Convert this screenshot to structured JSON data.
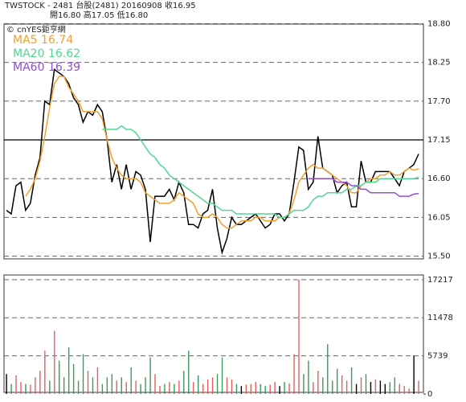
{
  "chart_data": [
    {
      "type": "line",
      "title": "TWSTOCK  -  2481  台股(2481) 20160908   收16.95",
      "subtitle": "開16.80     高17.05     低16.80",
      "source": "© cnYES鉅亨網",
      "ylim": [
        15.45,
        18.85
      ],
      "yticks": [
        {
          "value": 18.8,
          "label": "18.80"
        },
        18.25,
        {
          "value": 17.7,
          "label": "17.70"
        },
        17.15,
        {
          "value": 16.6,
          "label": "16.60"
        },
        16.05,
        {
          "value": 15.5,
          "label": "15.50"
        }
      ],
      "reference_line": 17.15,
      "grid": true,
      "series": [
        {
          "color": "#000000",
          "values": [
            16.15,
            16.1,
            16.5,
            16.55,
            16.15,
            16.25,
            16.65,
            16.9,
            17.7,
            17.65,
            18.15,
            18.1,
            18.05,
            17.95,
            17.75,
            17.65,
            17.4,
            17.55,
            17.5,
            17.65,
            17.55,
            17.15,
            16.55,
            16.8,
            16.45,
            16.8,
            16.45,
            16.7,
            16.65,
            16.45,
            15.7,
            16.35,
            16.35,
            16.35,
            16.45,
            16.3,
            16.55,
            16.4,
            15.95,
            15.95,
            15.9,
            16.1,
            16.15,
            16.45,
            15.9,
            15.55,
            15.75,
            16.05,
            15.95,
            15.95,
            16.0,
            16.05,
            16.1,
            16.0,
            15.9,
            15.95,
            16.1,
            16.1,
            16.0,
            16.1,
            16.55,
            17.05,
            17.0,
            16.45,
            16.55,
            17.2,
            16.75,
            16.7,
            16.65,
            16.4,
            16.5,
            16.55,
            16.2,
            16.2,
            16.85,
            16.55,
            16.55,
            16.7,
            16.7,
            16.7,
            16.7,
            16.6,
            16.5,
            16.7,
            16.75,
            16.8,
            16.95
          ]
        },
        {
          "name": "MA5",
          "color": "#f0a030",
          "values": [
            null,
            null,
            null,
            null,
            16.35,
            16.45,
            16.6,
            16.85,
            17.2,
            17.6,
            17.95,
            18.05,
            18.05,
            17.9,
            17.8,
            17.7,
            17.55,
            17.55,
            17.55,
            17.55,
            17.45,
            17.15,
            16.9,
            16.75,
            16.65,
            16.6,
            16.6,
            16.6,
            16.55,
            16.4,
            16.35,
            16.3,
            16.25,
            16.25,
            16.25,
            16.3,
            16.4,
            16.35,
            16.3,
            16.25,
            16.1,
            16.05,
            16.05,
            16.1,
            16.05,
            15.95,
            15.9,
            15.9,
            15.95,
            16.0,
            16.0,
            16.0,
            16.05,
            16.05,
            16.0,
            16.0,
            16.0,
            16.05,
            16.05,
            16.1,
            16.3,
            16.55,
            16.65,
            16.75,
            16.8,
            16.75,
            16.75,
            16.7,
            16.65,
            16.6,
            16.55,
            16.5,
            16.4,
            16.4,
            16.5,
            16.55,
            16.6,
            16.6,
            16.65,
            16.65,
            16.7,
            16.65,
            16.65,
            16.7,
            16.75,
            16.72,
            16.74
          ]
        },
        {
          "name": "MA20",
          "color": "#50d890",
          "values": [
            null,
            null,
            null,
            null,
            null,
            null,
            null,
            null,
            null,
            null,
            null,
            null,
            null,
            null,
            null,
            null,
            null,
            null,
            null,
            null,
            17.3,
            17.3,
            17.3,
            17.3,
            17.35,
            17.3,
            17.3,
            17.25,
            17.15,
            17.05,
            16.95,
            16.9,
            16.8,
            16.75,
            16.65,
            16.6,
            16.55,
            16.5,
            16.45,
            16.4,
            16.35,
            16.3,
            16.25,
            16.25,
            16.2,
            16.15,
            16.15,
            16.15,
            16.1,
            16.1,
            16.1,
            16.1,
            16.1,
            16.1,
            16.1,
            16.1,
            16.1,
            16.05,
            16.05,
            16.1,
            16.15,
            16.15,
            16.15,
            16.2,
            16.3,
            16.35,
            16.35,
            16.4,
            16.4,
            16.4,
            16.4,
            16.45,
            16.45,
            16.5,
            16.5,
            16.55,
            16.55,
            16.55,
            16.6,
            16.6,
            16.6,
            16.6,
            16.6,
            16.6,
            16.6,
            16.6,
            16.62
          ]
        },
        {
          "name": "MA60",
          "color": "#9050d0",
          "values": [
            null,
            null,
            null,
            null,
            null,
            null,
            null,
            null,
            null,
            null,
            null,
            null,
            null,
            null,
            null,
            null,
            null,
            null,
            null,
            null,
            null,
            null,
            null,
            null,
            null,
            null,
            null,
            null,
            null,
            null,
            null,
            null,
            null,
            null,
            null,
            null,
            null,
            null,
            null,
            null,
            null,
            null,
            null,
            null,
            null,
            null,
            null,
            null,
            null,
            null,
            null,
            null,
            null,
            null,
            null,
            null,
            null,
            null,
            null,
            null,
            null,
            null,
            null,
            16.6,
            16.6,
            16.6,
            16.6,
            16.6,
            16.6,
            16.55,
            16.55,
            16.55,
            16.5,
            16.5,
            16.45,
            16.45,
            16.4,
            16.4,
            16.4,
            16.4,
            16.4,
            16.4,
            16.35,
            16.35,
            16.35,
            16.38,
            16.39
          ]
        }
      ]
    },
    {
      "type": "bar",
      "ylim": [
        0,
        17800
      ],
      "yticks": [
        0,
        5739,
        11478,
        17217
      ],
      "grid": true,
      "values": [
        3000,
        1500,
        2800,
        1800,
        1500,
        1400,
        2500,
        3500,
        6500,
        2000,
        9500,
        5000,
        2500,
        7000,
        4500,
        2000,
        6000,
        3500,
        2500,
        4000,
        1500,
        2500,
        3000,
        2000,
        2500,
        1800,
        4000,
        2000,
        1500,
        2500,
        5500,
        3000,
        1200,
        1500,
        1800,
        1500,
        2000,
        3500,
        6500,
        1800,
        2800,
        1500,
        2200,
        2500,
        3000,
        5500,
        2500,
        2200,
        1500,
        1200,
        1400,
        1500,
        1800,
        1500,
        1200,
        1400,
        1800,
        1200,
        1800,
        1600,
        6000,
        17217,
        3000,
        5000,
        1800,
        3500,
        2500,
        7500,
        2000,
        3800,
        2800,
        2000,
        4000,
        1500,
        2500,
        3000,
        1800,
        2200,
        2000,
        1500,
        1800,
        2500,
        1500,
        1200,
        800,
        5800,
        2000
      ],
      "colors": [
        "#000",
        "#3a9a5a",
        "#e06060",
        "#e06060",
        "#3a9a5a",
        "#e06060",
        "#e06060",
        "#e06060",
        "#e06060",
        "#3a9a5a",
        "#e06060",
        "#3a9a5a",
        "#3a9a5a",
        "#3a9a5a",
        "#3a9a5a",
        "#3a9a5a",
        "#3a9a5a",
        "#e06060",
        "#3a9a5a",
        "#e06060",
        "#3a9a5a",
        "#3a9a5a",
        "#3a9a5a",
        "#e06060",
        "#3a9a5a",
        "#e06060",
        "#3a9a5a",
        "#e06060",
        "#3a9a5a",
        "#3a9a5a",
        "#3a9a5a",
        "#e06060",
        "#e06060",
        "#3a9a5a",
        "#e06060",
        "#3a9a5a",
        "#e06060",
        "#3a9a5a",
        "#3a9a5a",
        "#e06060",
        "#3a9a5a",
        "#e06060",
        "#e06060",
        "#e06060",
        "#3a9a5a",
        "#3a9a5a",
        "#e06060",
        "#e06060",
        "#3a9a5a",
        "#000",
        "#e06060",
        "#e06060",
        "#e06060",
        "#3a9a5a",
        "#3a9a5a",
        "#e06060",
        "#e06060",
        "#000",
        "#3a9a5a",
        "#e06060",
        "#e06060",
        "#e06060",
        "#3a9a5a",
        "#3a9a5a",
        "#e06060",
        "#e06060",
        "#3a9a5a",
        "#3a9a5a",
        "#3a9a5a",
        "#3a9a5a",
        "#e06060",
        "#e06060",
        "#3a9a5a",
        "#000",
        "#e06060",
        "#3a9a5a",
        "#000",
        "#e06060",
        "#000",
        "#000",
        "#3a9a5a",
        "#3a9a5a",
        "#e06060",
        "#e06060",
        "#e06060",
        "#000",
        "#e06060"
      ]
    }
  ]
}
